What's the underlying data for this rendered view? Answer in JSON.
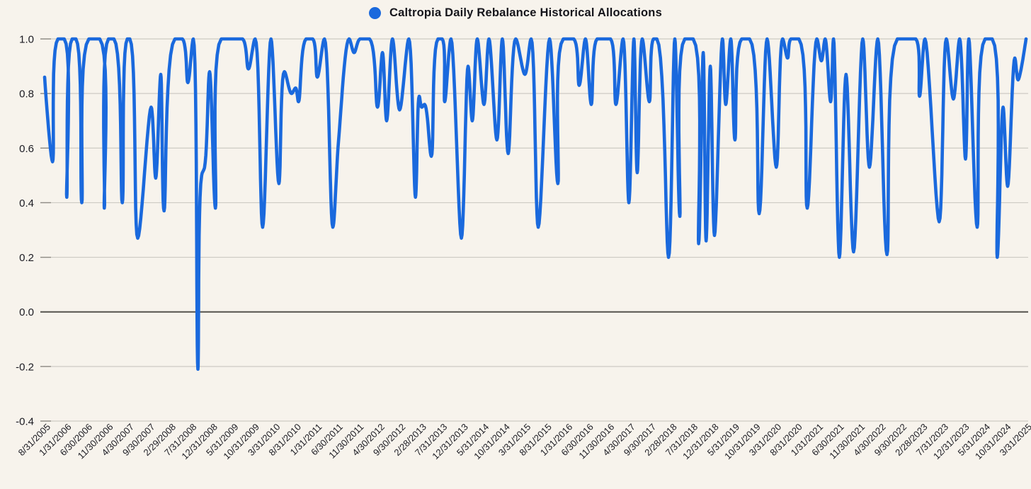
{
  "legend": {
    "title": "Caltropia Daily Rebalance Historical Allocations",
    "marker_color": "#1a69dd"
  },
  "style": {
    "background": "#f7f3ec",
    "line_color": "#1a69dd",
    "grid_color": "#cdcac3",
    "tick_dash_color": "#8e8b84",
    "zero_line_color": "#55534d",
    "text_color": "#1b1b22"
  },
  "chart_data": {
    "type": "line",
    "title": "Caltropia Daily Rebalance Historical Allocations",
    "series_name": "Caltropia Daily Rebalance Historical Allocations",
    "x_unit": "months since 8/31/2005 (monthly rebalance dates)",
    "x_tick_interval_months": 5,
    "ylim": [
      -0.4,
      1.0
    ],
    "grid": true,
    "legend_position": "top-center",
    "y_tick_labels": [
      "1.0",
      "0.8",
      "0.6",
      "0.4",
      "0.2",
      "0.0",
      "-0.2",
      "-0.4"
    ],
    "y_tick_values": [
      1.0,
      0.8,
      0.6,
      0.4,
      0.2,
      0.0,
      -0.2,
      -0.4
    ],
    "x_tick_labels": [
      "8/31/2005",
      "1/31/2006",
      "6/30/2006",
      "11/30/2006",
      "4/30/2007",
      "9/30/2007",
      "2/29/2008",
      "7/31/2008",
      "12/31/2008",
      "5/31/2009",
      "10/31/2009",
      "3/31/2010",
      "8/31/2010",
      "1/31/2011",
      "6/30/2011",
      "11/30/2011",
      "4/30/2012",
      "9/30/2012",
      "2/28/2013",
      "7/31/2013",
      "12/31/2013",
      "5/31/2014",
      "10/31/2014",
      "3/31/2015",
      "8/31/2015",
      "1/31/2016",
      "6/30/2016",
      "11/30/2016",
      "4/30/2017",
      "9/30/2017",
      "2/28/2018",
      "7/31/2018",
      "12/31/2018",
      "5/31/2019",
      "10/31/2019",
      "3/31/2020",
      "8/31/2020",
      "1/31/2021",
      "6/30/2021",
      "11/30/2021",
      "4/30/2022",
      "9/30/2022",
      "2/28/2023",
      "7/31/2023",
      "12/31/2023",
      "5/31/2024",
      "10/31/2024",
      "3/31/2025"
    ],
    "points_format": "[month_index, allocation] anchor points digitized from the curve",
    "points": [
      [
        0,
        0.86
      ],
      [
        1.9,
        0.55
      ],
      [
        3.2,
        1
      ],
      [
        4.7,
        1
      ],
      [
        5.3,
        0.42
      ],
      [
        6.6,
        1
      ],
      [
        7.5,
        1
      ],
      [
        8.9,
        0.4
      ],
      [
        10.6,
        1
      ],
      [
        13.2,
        1
      ],
      [
        14.3,
        0.38
      ],
      [
        15.3,
        1
      ],
      [
        16.6,
        1
      ],
      [
        18.6,
        0.4
      ],
      [
        19.8,
        1
      ],
      [
        20.4,
        1
      ],
      [
        22.3,
        0.27
      ],
      [
        25.5,
        0.75
      ],
      [
        26.6,
        0.49
      ],
      [
        27.8,
        0.87
      ],
      [
        28.6,
        0.37
      ],
      [
        31.2,
        1
      ],
      [
        33,
        1
      ],
      [
        34.3,
        0.84
      ],
      [
        35.6,
        1
      ],
      [
        36.7,
        -0.21
      ],
      [
        37.6,
        0.5
      ],
      [
        38.3,
        0.53
      ],
      [
        39.5,
        0.88
      ],
      [
        40.9,
        0.38
      ],
      [
        42.3,
        1
      ],
      [
        44.5,
        1
      ],
      [
        47.4,
        1
      ],
      [
        48.8,
        0.89
      ],
      [
        50.4,
        1
      ],
      [
        52.2,
        0.31
      ],
      [
        54.2,
        1
      ],
      [
        56.1,
        0.47
      ],
      [
        57.4,
        0.88
      ],
      [
        59.1,
        0.8
      ],
      [
        60.1,
        0.82
      ],
      [
        60.8,
        0.77
      ],
      [
        62.6,
        1
      ],
      [
        64.2,
        1
      ],
      [
        65.3,
        0.86
      ],
      [
        67,
        1
      ],
      [
        69,
        0.31
      ],
      [
        70.4,
        0.63
      ],
      [
        72.9,
        1
      ],
      [
        74.1,
        0.95
      ],
      [
        75.5,
        1
      ],
      [
        77.8,
        1
      ],
      [
        79.7,
        0.75
      ],
      [
        80.9,
        0.95
      ],
      [
        81.9,
        0.7
      ],
      [
        83.3,
        1
      ],
      [
        85,
        0.74
      ],
      [
        87.2,
        1
      ],
      [
        88.8,
        0.42
      ],
      [
        89.7,
        0.79
      ],
      [
        90.3,
        0.75
      ],
      [
        91,
        0.76
      ],
      [
        92.6,
        0.57
      ],
      [
        94.2,
        1
      ],
      [
        95.2,
        1
      ],
      [
        95.8,
        0.77
      ],
      [
        97.3,
        1
      ],
      [
        99.8,
        0.27
      ],
      [
        101.4,
        0.9
      ],
      [
        102.4,
        0.7
      ],
      [
        103.6,
        1
      ],
      [
        105.2,
        0.76
      ],
      [
        106.4,
        1
      ],
      [
        108.3,
        0.63
      ],
      [
        109.6,
        1
      ],
      [
        111,
        0.58
      ],
      [
        112.8,
        1
      ],
      [
        115,
        0.87
      ],
      [
        116.5,
        1
      ],
      [
        118.2,
        0.31
      ],
      [
        120.9,
        1
      ],
      [
        122.9,
        0.47
      ],
      [
        124.2,
        1
      ],
      [
        126.7,
        1
      ],
      [
        128,
        0.83
      ],
      [
        129.5,
        1
      ],
      [
        130.9,
        0.76
      ],
      [
        132.3,
        1
      ],
      [
        134,
        1
      ],
      [
        135.5,
        1
      ],
      [
        136.8,
        0.76
      ],
      [
        138.5,
        1
      ],
      [
        139.9,
        0.4
      ],
      [
        141.1,
        1
      ],
      [
        141.9,
        0.51
      ],
      [
        143.1,
        1
      ],
      [
        144.8,
        0.77
      ],
      [
        145.8,
        1
      ],
      [
        146.6,
        1
      ],
      [
        149.4,
        0.2
      ],
      [
        150.9,
        1
      ],
      [
        152.1,
        0.35
      ],
      [
        153.3,
        1
      ],
      [
        155.3,
        1
      ],
      [
        156.6,
        0.25
      ],
      [
        157.7,
        0.95
      ],
      [
        158.4,
        0.26
      ],
      [
        159.4,
        0.9
      ],
      [
        160.4,
        0.28
      ],
      [
        162.3,
        1
      ],
      [
        163.1,
        0.76
      ],
      [
        164.3,
        1
      ],
      [
        165.3,
        0.63
      ],
      [
        166.9,
        1
      ],
      [
        168.8,
        1
      ],
      [
        171.1,
        0.36
      ],
      [
        173,
        1
      ],
      [
        175.2,
        0.53
      ],
      [
        176.7,
        1
      ],
      [
        177.9,
        0.93
      ],
      [
        178.7,
        1
      ],
      [
        180.6,
        1
      ],
      [
        182.6,
        0.38
      ],
      [
        184.9,
        1
      ],
      [
        186,
        0.92
      ],
      [
        186.9,
        1
      ],
      [
        188.2,
        0.77
      ],
      [
        188.9,
        1
      ],
      [
        190.3,
        0.2
      ],
      [
        191.9,
        0.87
      ],
      [
        193.7,
        0.22
      ],
      [
        195.9,
        1
      ],
      [
        197.5,
        0.53
      ],
      [
        199.5,
        1
      ],
      [
        201.7,
        0.21
      ],
      [
        204.2,
        1
      ],
      [
        206.4,
        1
      ],
      [
        208.6,
        1
      ],
      [
        209.5,
        0.79
      ],
      [
        210.8,
        1
      ],
      [
        214.2,
        0.33
      ],
      [
        215.9,
        1
      ],
      [
        217.6,
        0.78
      ],
      [
        219.1,
        1
      ],
      [
        220.5,
        0.56
      ],
      [
        221.3,
        1
      ],
      [
        223.3,
        0.31
      ],
      [
        225.2,
        1
      ],
      [
        226.9,
        1
      ],
      [
        228.1,
        0.2
      ],
      [
        229.5,
        0.75
      ],
      [
        230.6,
        0.46
      ],
      [
        232.3,
        0.93
      ],
      [
        233.1,
        0.85
      ],
      [
        235,
        1
      ]
    ]
  }
}
